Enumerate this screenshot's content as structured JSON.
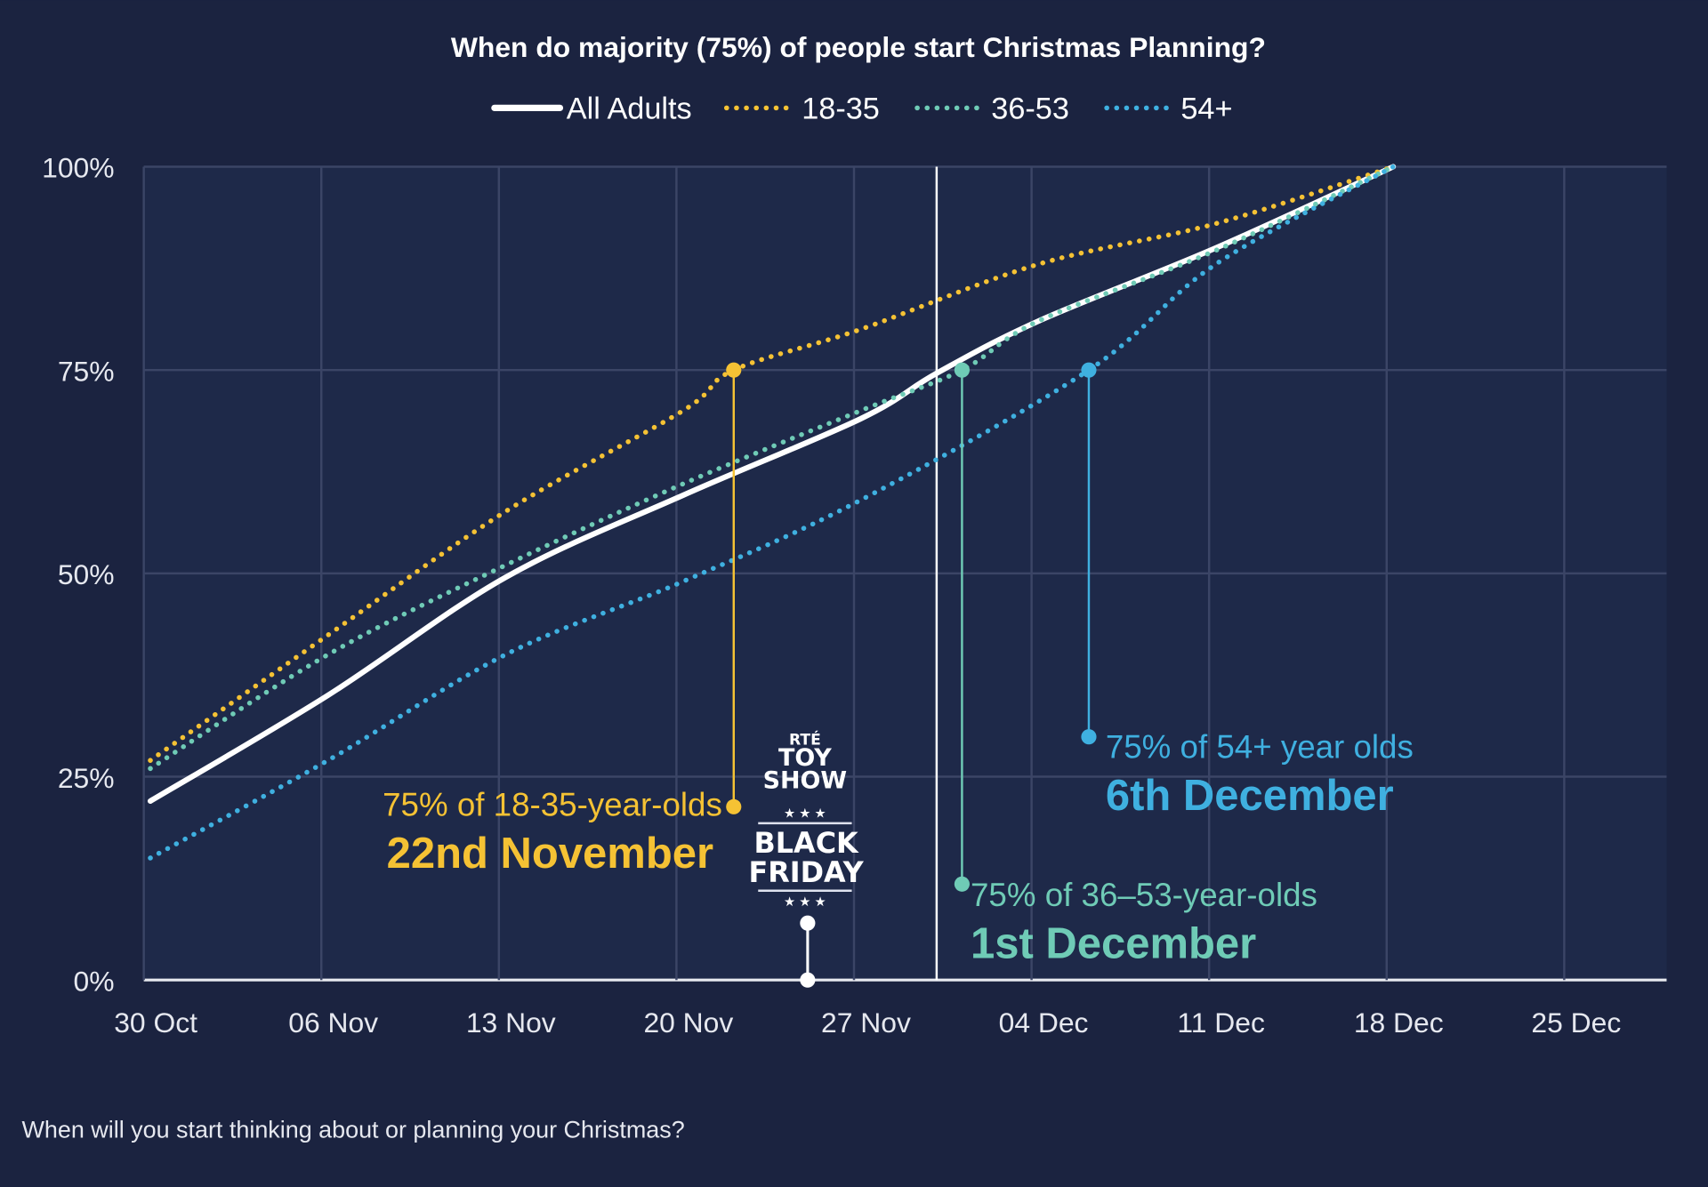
{
  "chart_data": {
    "type": "line",
    "title": "When do majority (75%) of people start Christmas Planning?",
    "xlabel": "",
    "ylabel": "",
    "x_ticks": [
      "30 Oct",
      "06 Nov",
      "13 Nov",
      "20 Nov",
      "27 Nov",
      "04 Dec",
      "11 Dec",
      "18 Dec",
      "25 Dec"
    ],
    "y_ticks": [
      "0%",
      "25%",
      "50%",
      "75%",
      "100%"
    ],
    "ylim": [
      0,
      100
    ],
    "grid": true,
    "legend_position": "top-center",
    "series": [
      {
        "name": "All Adults",
        "color": "#ffffff",
        "style": "solid",
        "x": [
          "30 Oct",
          "06 Nov",
          "13 Nov",
          "20 Nov",
          "27 Nov",
          "30 Nov",
          "04 Dec",
          "11 Dec",
          "18 Dec"
        ],
        "y": [
          22,
          35,
          49.5,
          59.6,
          69,
          74.6,
          81,
          90,
          100
        ]
      },
      {
        "name": "18-35",
        "color": "#f5c234",
        "style": "dotted",
        "x": [
          "30 Oct",
          "06 Nov",
          "13 Nov",
          "20 Nov",
          "22 Nov",
          "27 Nov",
          "04 Dec",
          "11 Dec",
          "18 Dec"
        ],
        "y": [
          27,
          42.4,
          57.6,
          70,
          75,
          80,
          88,
          93,
          100
        ]
      },
      {
        "name": "36-53",
        "color": "#6fcbb6",
        "style": "dotted",
        "x": [
          "30 Oct",
          "06 Nov",
          "13 Nov",
          "20 Nov",
          "27 Nov",
          "01 Dec",
          "04 Dec",
          "11 Dec",
          "18 Dec"
        ],
        "y": [
          26,
          40,
          51,
          61,
          70,
          75,
          81,
          89.7,
          100
        ]
      },
      {
        "name": "54+",
        "color": "#3fb0e0",
        "style": "dotted",
        "x": [
          "30 Oct",
          "06 Nov",
          "13 Nov",
          "20 Nov",
          "27 Nov",
          "06 Dec",
          "11 Dec",
          "18 Dec"
        ],
        "y": [
          15,
          27,
          40,
          49,
          59,
          75,
          88,
          100
        ]
      }
    ],
    "reference_line": {
      "x": "30 Nov",
      "color": "#ffffff"
    },
    "annotations": [
      {
        "series": "18-35",
        "x": "22 Nov",
        "y": 75,
        "label_y": 21.3,
        "color": "#f5c234",
        "text": "75% of 18-35-year-olds",
        "date_text": "22nd November"
      },
      {
        "series": "36-53",
        "x": "01 Dec",
        "y": 75,
        "label_y": 11.8,
        "color": "#6fcbb6",
        "text": "75% of 36–53-year-olds",
        "date_text": "1st December"
      },
      {
        "series": "54+",
        "x": "06 Dec",
        "y": 75,
        "label_y": 29.9,
        "color": "#3fb0e0",
        "text": "75% of 54+ year olds",
        "date_text": "6th December"
      }
    ],
    "event_marker": {
      "x": "25 Nov",
      "y": 7,
      "logo_text": [
        "RTÉ",
        "TOY",
        "SHOW"
      ],
      "label": [
        "BLACK",
        "FRIDAY"
      ]
    }
  },
  "footer": {
    "question": "When will you start thinking about or planning your Christmas?"
  },
  "colors": {
    "background": "#1b2340",
    "plot_background": "#1e2949",
    "grid": "#3b4566"
  }
}
